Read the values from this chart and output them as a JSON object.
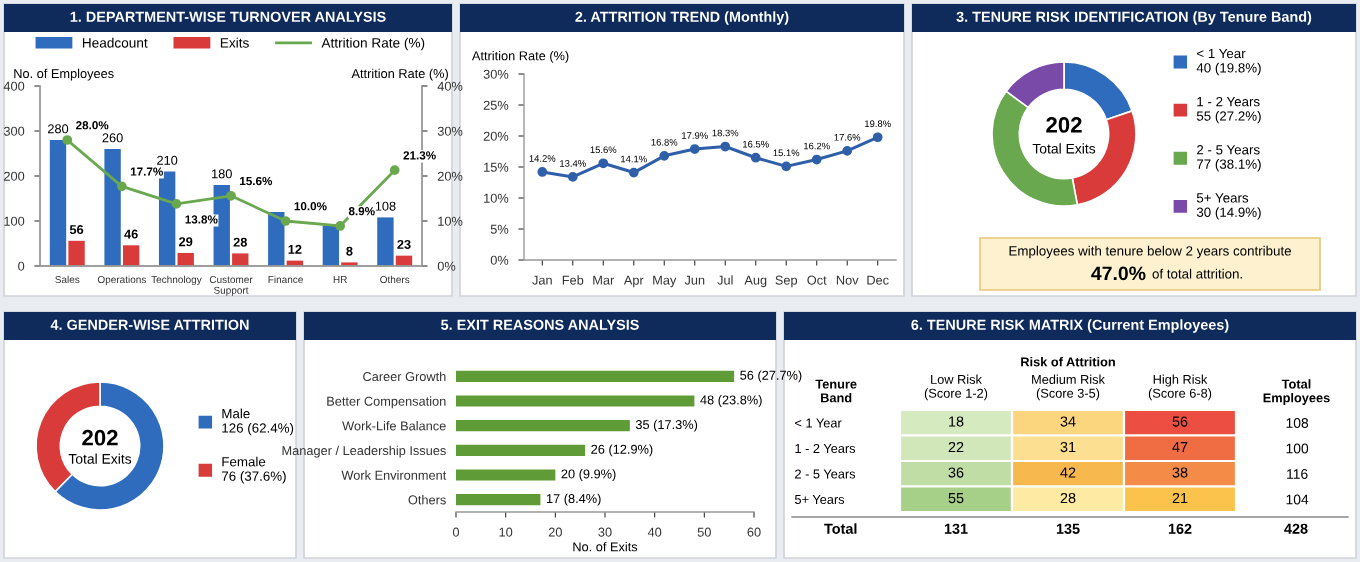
{
  "chart_data": [
    {
      "type": "bar",
      "title": "1. DEPARTMENT-WISE TURNOVER ANALYSIS",
      "categories": [
        "Sales",
        "Operations",
        "Technology",
        "Customer\nSupport",
        "Finance",
        "HR",
        "Others"
      ],
      "ylabel": "No. of Employees",
      "y2label": "Attrition Rate (%)",
      "ylim": [
        0,
        400
      ],
      "yticks": [
        0,
        100,
        200,
        300,
        400
      ],
      "y2lim": [
        0,
        40
      ],
      "y2ticks": [
        {
          "value": 0,
          "label": "0%"
        },
        {
          "value": 10,
          "label": "10%"
        },
        {
          "value": 20,
          "label": "20%"
        },
        {
          "value": 30,
          "label": "30%"
        },
        {
          "value": 40,
          "label": "40%"
        }
      ],
      "legend": "top",
      "marker": "circle",
      "series": [
        {
          "name": "Headcount",
          "color": "#2f6cbd",
          "values": [
            280,
            260,
            210,
            180,
            120,
            90,
            108
          ],
          "value_labels": [
            "280",
            "260",
            "210",
            "180",
            null,
            null,
            "108"
          ]
        },
        {
          "name": "Exits",
          "color": "#d93b3b",
          "values": [
            56,
            46,
            29,
            28,
            12,
            8,
            23
          ],
          "value_labels": [
            "56",
            "46",
            "29",
            "28",
            "12",
            "8",
            "23"
          ]
        },
        {
          "name": "Attrition Rate (%)",
          "type": "line",
          "axis": "y2",
          "color": "#6aa84f",
          "values": [
            28.0,
            17.7,
            13.8,
            15.6,
            10.0,
            8.9,
            21.3
          ],
          "value_labels": [
            "28.0%",
            "17.7%",
            "13.8%",
            "15.6%",
            "10.0%",
            "8.9%",
            "21.3%"
          ]
        }
      ]
    },
    {
      "type": "line",
      "title": "2. ATTRITION TREND (Monthly)",
      "ylabel": "Attrition Rate (%)",
      "categories": [
        "Jan",
        "Feb",
        "Mar",
        "Apr",
        "May",
        "Jun",
        "Jul",
        "Aug",
        "Sep",
        "Oct",
        "Nov",
        "Dec"
      ],
      "ylim": [
        0,
        30
      ],
      "yticks": [
        {
          "value": 0,
          "label": "0%"
        },
        {
          "value": 5,
          "label": "5%"
        },
        {
          "value": 10,
          "label": "10%"
        },
        {
          "value": 15,
          "label": "15%"
        },
        {
          "value": 20,
          "label": "20%"
        },
        {
          "value": 25,
          "label": "25%"
        },
        {
          "value": 30,
          "label": "30%"
        }
      ],
      "marker": "circle",
      "series": [
        {
          "color": "#2f5fa8",
          "values": [
            14.2,
            13.4,
            15.6,
            14.1,
            16.8,
            17.9,
            18.3,
            16.5,
            15.1,
            16.2,
            17.6,
            19.8
          ],
          "value_labels": [
            "14.2%",
            "13.4%",
            "15.6%",
            "14.1%",
            "16.8%",
            "17.9%",
            "18.3%",
            "16.5%",
            "15.1%",
            "16.2%",
            "17.6%",
            "19.8%"
          ]
        }
      ]
    },
    {
      "type": "donut",
      "title": "3. TENURE RISK IDENTIFICATION (By Tenure Band)",
      "categories": [
        "< 1 Year",
        "1 - 2 Years",
        "2 - 5 Years",
        "5+ Years"
      ],
      "values": [
        40,
        55,
        77,
        30
      ],
      "colors": [
        "#2f6cbd",
        "#d93b3b",
        "#6aa84f",
        "#7a4aa8"
      ],
      "value_labels": [
        "40 (19.8%)",
        "55 (27.2%)",
        "77 (38.1%)",
        "30 (14.9%)"
      ],
      "legend": "right",
      "annotations": [
        "202",
        "Total Exits",
        "Employees with tenure below 2 years contribute",
        "47.0%",
        "of total attrition."
      ]
    },
    {
      "type": "donut",
      "title": "4. GENDER-WISE ATTRITION",
      "categories": [
        "Male",
        "Female"
      ],
      "values": [
        126,
        76
      ],
      "colors": [
        "#2f6cbd",
        "#d93b3b"
      ],
      "value_labels": [
        "126 (62.4%)",
        "76 (37.6%)"
      ],
      "legend": "right",
      "annotations": [
        "202",
        "Total Exits"
      ]
    },
    {
      "type": "bar",
      "orientation": "horizontal",
      "title": "5. EXIT REASONS ANALYSIS",
      "categories": [
        "Career Growth",
        "Better Compensation",
        "Work-Life Balance",
        "Manager / Leadership Issues",
        "Work Environment",
        "Others"
      ],
      "values": [
        56,
        48,
        35,
        26,
        20,
        17
      ],
      "value_labels": [
        "56 (27.7%)",
        "48 (23.8%)",
        "35 (17.3%)",
        "26 (12.9%)",
        "20 (9.9%)",
        "17 (8.4%)"
      ],
      "color": "#5f9b36",
      "xlim": [
        0,
        60
      ],
      "xticks": [
        0,
        10,
        20,
        30,
        40,
        50,
        60
      ],
      "xlabel": "No. of Exits"
    },
    {
      "type": "heatmap",
      "title": "6. TENURE RISK MATRIX (Current Employees)",
      "xlabel": "Risk of Attrition",
      "ylabel": "Tenure Band",
      "y2label": "Total Employees",
      "categories": [
        "Low Risk\n(Score 1-2)",
        "Medium Risk\n(Score 3-5)",
        "High Risk\n(Score 6-8)"
      ],
      "y_categories": [
        "< 1 Year",
        "1 - 2 Years",
        "2 - 5 Years",
        "5+ Years"
      ],
      "y2_categories": [
        "108",
        "100",
        "116",
        "104"
      ],
      "cells": [
        [
          18,
          34,
          56
        ],
        [
          22,
          31,
          47
        ],
        [
          36,
          42,
          38
        ],
        [
          55,
          28,
          21
        ]
      ],
      "data_labels": true,
      "annotations": [
        "Total",
        "131",
        "135",
        "162",
        "428"
      ]
    }
  ]
}
